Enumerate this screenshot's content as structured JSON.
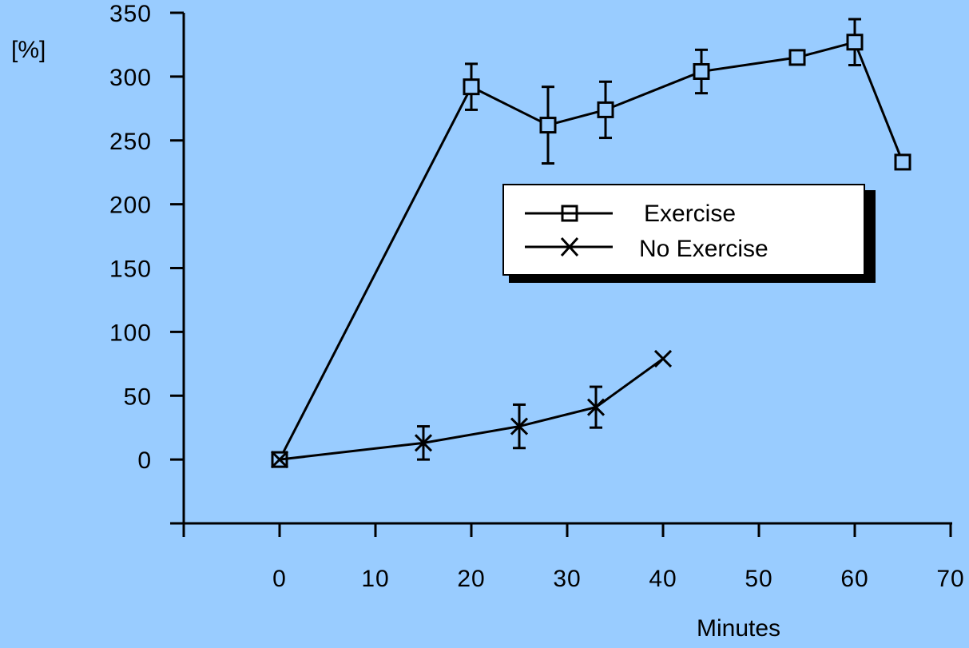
{
  "colors": {
    "background": "#99ccff",
    "ink": "#000000",
    "legend_fill": "#ffffff"
  },
  "chart_data": {
    "type": "line",
    "title": "",
    "xlabel": "Minutes",
    "ylabel": "[%]",
    "xlim": [
      -10,
      70
    ],
    "ylim": [
      -50,
      350
    ],
    "x_ticks": [
      0,
      10,
      20,
      30,
      40,
      50,
      60,
      70
    ],
    "y_ticks": [
      0,
      50,
      100,
      150,
      200,
      250,
      300,
      350
    ],
    "grid": false,
    "legend": {
      "position": "center-right"
    },
    "series": [
      {
        "name": "Exercise",
        "marker": "square",
        "points": [
          {
            "x": 0,
            "y": 0
          },
          {
            "x": 20,
            "y": 292,
            "err": 18
          },
          {
            "x": 28,
            "y": 262,
            "err": 30
          },
          {
            "x": 34,
            "y": 274,
            "err": 22
          },
          {
            "x": 44,
            "y": 304,
            "err": 17
          },
          {
            "x": 54,
            "y": 315
          },
          {
            "x": 60,
            "y": 327,
            "err": 18
          },
          {
            "x": 65,
            "y": 233
          }
        ]
      },
      {
        "name": "No Exercise",
        "marker": "x",
        "points": [
          {
            "x": 0,
            "y": 0
          },
          {
            "x": 15,
            "y": 13,
            "err": 13
          },
          {
            "x": 25,
            "y": 26,
            "err": 17
          },
          {
            "x": 33,
            "y": 41,
            "err": 16
          },
          {
            "x": 40,
            "y": 79
          }
        ]
      }
    ]
  }
}
